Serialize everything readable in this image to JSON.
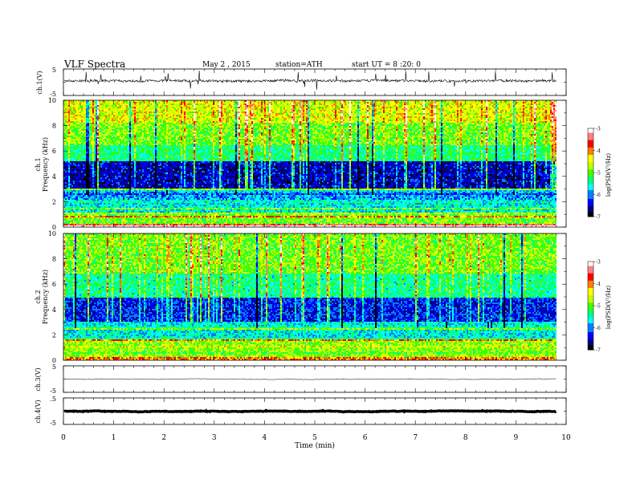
{
  "header": {
    "title": "VLF Spectra",
    "date": "May 2 , 2015",
    "station": "station=ATH",
    "start": "start UT = 8 :20: 0"
  },
  "chart_data": {
    "type": "heatmap",
    "title": "VLF Spectra",
    "xlabel": "Time (min)",
    "xlim": [
      0,
      10
    ],
    "x_ticks": [
      "0",
      "1",
      "2",
      "3",
      "4",
      "5",
      "6",
      "7",
      "8",
      "9",
      "10"
    ],
    "data_end_min": 9.8,
    "waveforms": [
      {
        "ylabel": "ch.1(V)",
        "ylim": [
          -5,
          5
        ],
        "ticks": [
          "5",
          "-5"
        ],
        "baseline_v": 0.5,
        "noise_v": 0.45,
        "spike_v": 1.5,
        "color": "#000000"
      },
      {
        "ylabel": "ch.3(V)",
        "ylim": [
          -5,
          5
        ],
        "ticks": [
          "5",
          "-5"
        ],
        "baseline_v": 0.0,
        "noise_v": 0.05,
        "spike_v": 0.1,
        "color": "#222222"
      },
      {
        "ylabel": "ch.4(V)",
        "ylim": [
          -5,
          5
        ],
        "ticks": [
          ".5",
          "-5"
        ],
        "baseline_v": 0.0,
        "noise_v": 0.08,
        "spike_v": 0.1,
        "color": "#000000",
        "thick": true
      }
    ],
    "spectrograms": [
      {
        "name": "ch.1",
        "ylabel_channel": "ch.1",
        "ylabel": "Frequency (kHz)",
        "ylim": [
          0,
          10
        ],
        "y_ticks": [
          "0",
          "2",
          "4",
          "6",
          "8",
          "10"
        ],
        "colorbar_label": "log(PSD(V²/Hz)",
        "colorbar_range": [
          -7,
          -3
        ],
        "colorbar_ticks": [
          "-3",
          "-4",
          "-5",
          "-6",
          "-7"
        ],
        "bands": [
          {
            "f0": 0.0,
            "f1": 0.3,
            "level": -3.6
          },
          {
            "f0": 0.3,
            "f1": 1.0,
            "level": -4.9
          },
          {
            "f0": 1.0,
            "f1": 2.2,
            "level": -5.6
          },
          {
            "f0": 2.2,
            "f1": 3.0,
            "level": -5.9
          },
          {
            "f0": 3.0,
            "f1": 5.2,
            "level": -6.5
          },
          {
            "f0": 5.2,
            "f1": 6.5,
            "level": -5.3
          },
          {
            "f0": 6.5,
            "f1": 8.2,
            "level": -4.9
          },
          {
            "f0": 8.2,
            "f1": 10.0,
            "level": -4.5
          }
        ]
      },
      {
        "name": "ch.2",
        "ylabel_channel": "ch.2",
        "ylabel": "Frequency (kHz)",
        "ylim": [
          0,
          10
        ],
        "y_ticks": [
          "0",
          "2",
          "4",
          "6",
          "8",
          "10"
        ],
        "colorbar_label": "log(PSD(V²/Hz)",
        "colorbar_range": [
          -7,
          -3
        ],
        "colorbar_ticks": [
          "-3",
          "-4",
          "-5",
          "-6",
          "-7"
        ],
        "bands": [
          {
            "f0": 0.0,
            "f1": 0.3,
            "level": -4.0
          },
          {
            "f0": 0.3,
            "f1": 1.6,
            "level": -4.8
          },
          {
            "f0": 1.6,
            "f1": 3.0,
            "level": -5.6
          },
          {
            "f0": 3.0,
            "f1": 5.0,
            "level": -6.3
          },
          {
            "f0": 5.0,
            "f1": 6.8,
            "level": -5.4
          },
          {
            "f0": 6.8,
            "f1": 10.0,
            "level": -4.9
          }
        ]
      }
    ],
    "colormap": [
      "#000000",
      "#000080",
      "#0000ff",
      "#0080ff",
      "#00ffff",
      "#00ff80",
      "#40ff00",
      "#c0ff00",
      "#ffff00",
      "#ff8000",
      "#ff0000",
      "#ff8080",
      "#ffffff"
    ]
  }
}
